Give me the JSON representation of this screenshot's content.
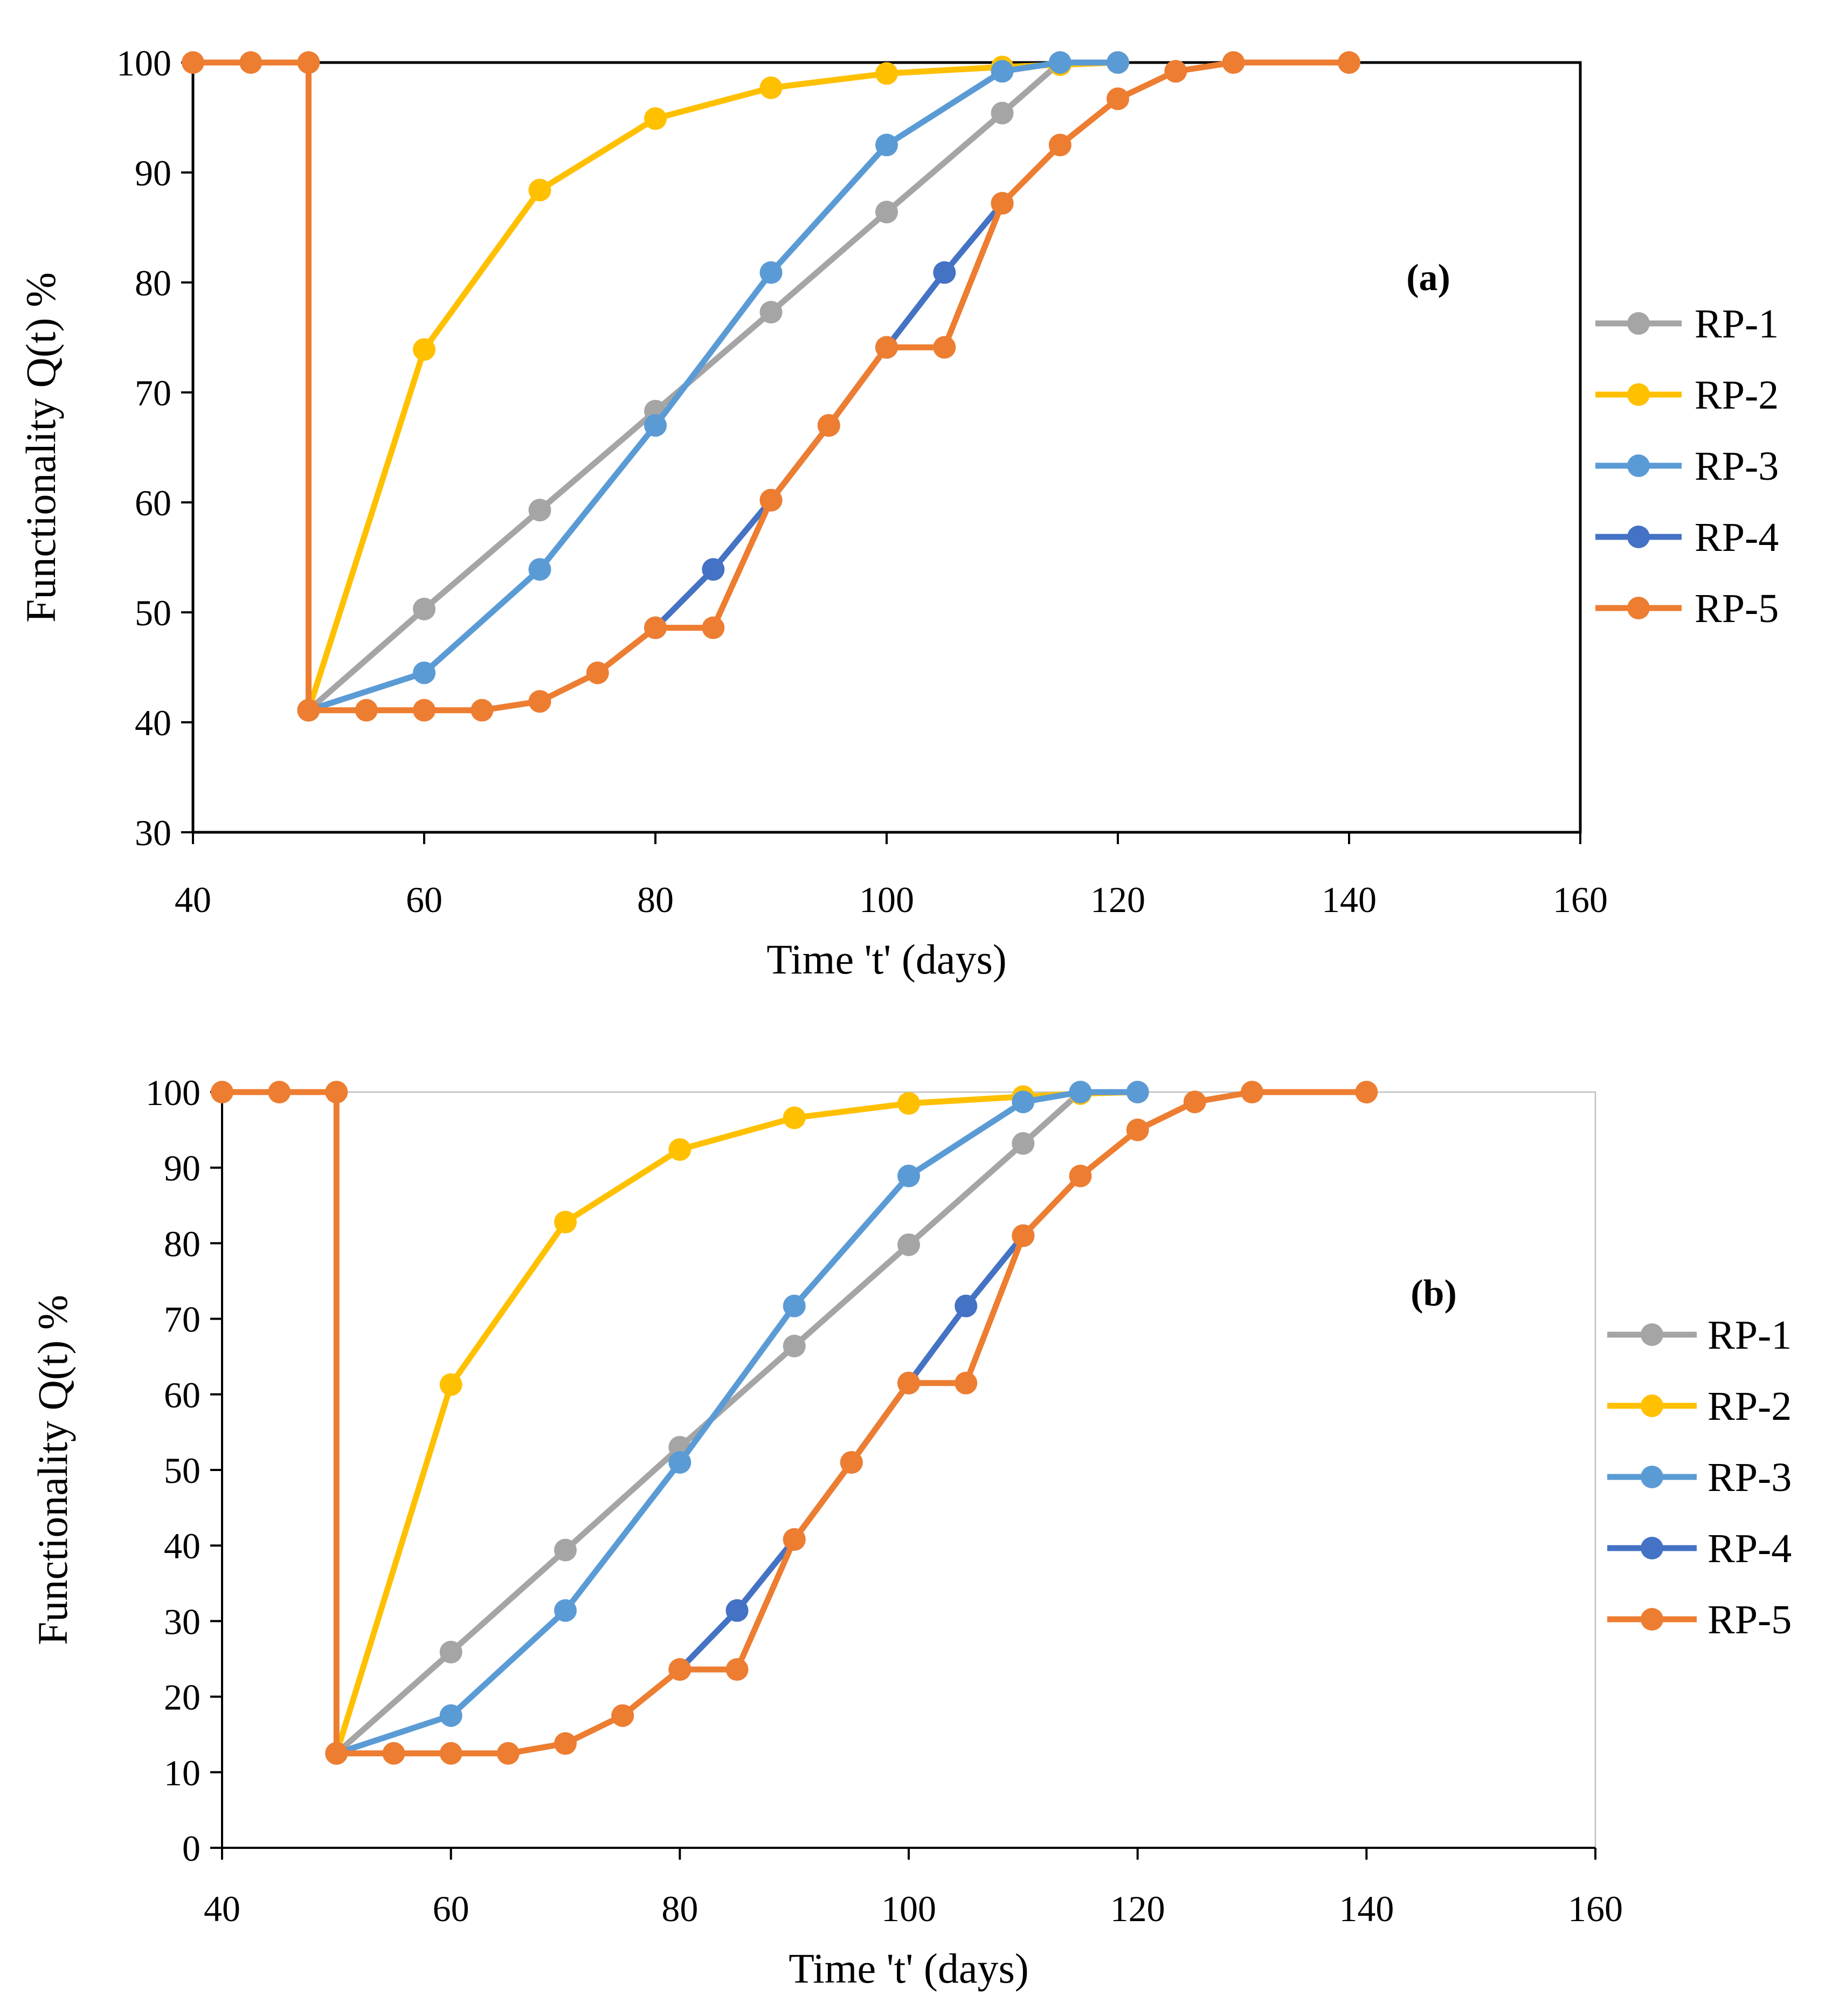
{
  "chart_data": [
    {
      "type": "line",
      "panel": "(a)",
      "xlabel": "Time 't' (days)",
      "ylabel": "Functionality Q(t) %",
      "xlim": [
        40,
        160
      ],
      "ylim": [
        30,
        100
      ],
      "xticks": [
        40,
        60,
        80,
        100,
        120,
        140,
        160
      ],
      "yticks": [
        30,
        40,
        50,
        60,
        70,
        80,
        90,
        100
      ],
      "legend_position": "right",
      "series": [
        {
          "name": "RP-1",
          "color": "#A5A5A5",
          "points": [
            [
              50,
              41.1
            ],
            [
              60,
              50.3
            ],
            [
              70,
              59.3
            ],
            [
              80,
              68.3
            ],
            [
              90,
              77.3
            ],
            [
              100,
              86.4
            ],
            [
              110,
              95.4
            ],
            [
              115,
              100
            ]
          ]
        },
        {
          "name": "RP-2",
          "color": "#FFC000",
          "points": [
            [
              50,
              41.1
            ],
            [
              60,
              73.9
            ],
            [
              70,
              88.4
            ],
            [
              80,
              94.9
            ],
            [
              90,
              97.7
            ],
            [
              100,
              99.0
            ],
            [
              110,
              99.6
            ],
            [
              115,
              99.8
            ],
            [
              120,
              100
            ]
          ]
        },
        {
          "name": "RP-3",
          "color": "#5B9BD5",
          "points": [
            [
              50,
              41.1
            ],
            [
              60,
              44.5
            ],
            [
              70,
              53.9
            ],
            [
              80,
              67.0
            ],
            [
              90,
              80.9
            ],
            [
              100,
              92.5
            ],
            [
              110,
              99.2
            ],
            [
              115,
              100
            ],
            [
              120,
              100
            ]
          ]
        },
        {
          "name": "RP-4",
          "color": "#4472C4",
          "points": [
            [
              80,
              48.6
            ],
            [
              85,
              53.9
            ],
            [
              90,
              60.2
            ],
            [
              95,
              67.0
            ],
            [
              100,
              74.1
            ],
            [
              105,
              80.9
            ],
            [
              110,
              87.2
            ]
          ]
        },
        {
          "name": "RP-5",
          "color": "#ED7D31",
          "points": [
            [
              40,
              100
            ],
            [
              45,
              100
            ],
            [
              50,
              100
            ],
            [
              50,
              41.1
            ],
            [
              55,
              41.1
            ],
            [
              60,
              41.1
            ],
            [
              65,
              41.1
            ],
            [
              70,
              41.9
            ],
            [
              75,
              44.5
            ],
            [
              80,
              48.6
            ],
            [
              85,
              48.6
            ],
            [
              90,
              60.2
            ],
            [
              95,
              67.0
            ],
            [
              100,
              74.1
            ],
            [
              105,
              74.1
            ],
            [
              110,
              87.2
            ],
            [
              115,
              92.5
            ],
            [
              120,
              96.7
            ],
            [
              125,
              99.2
            ],
            [
              130,
              100
            ],
            [
              140,
              100
            ]
          ]
        }
      ]
    },
    {
      "type": "line",
      "panel": "(b)",
      "xlabel": "Time 't' (days)",
      "ylabel": "Functionality Q(t) %",
      "xlim": [
        40,
        160
      ],
      "ylim": [
        0,
        100
      ],
      "xticks": [
        40,
        60,
        80,
        100,
        120,
        140,
        160
      ],
      "yticks": [
        0,
        10,
        20,
        30,
        40,
        50,
        60,
        70,
        80,
        90,
        100
      ],
      "legend_position": "right",
      "series": [
        {
          "name": "RP-1",
          "color": "#A5A5A5",
          "points": [
            [
              50,
              12.5
            ],
            [
              60,
              25.9
            ],
            [
              70,
              39.4
            ],
            [
              80,
              53.0
            ],
            [
              90,
              66.4
            ],
            [
              100,
              79.8
            ],
            [
              110,
              93.2
            ],
            [
              115,
              100
            ]
          ]
        },
        {
          "name": "RP-2",
          "color": "#FFC000",
          "points": [
            [
              50,
              12.5
            ],
            [
              60,
              61.3
            ],
            [
              70,
              82.8
            ],
            [
              80,
              92.4
            ],
            [
              90,
              96.6
            ],
            [
              100,
              98.5
            ],
            [
              110,
              99.4
            ],
            [
              115,
              99.8
            ],
            [
              120,
              100
            ]
          ]
        },
        {
          "name": "RP-3",
          "color": "#5B9BD5",
          "points": [
            [
              50,
              12.5
            ],
            [
              60,
              17.5
            ],
            [
              70,
              31.4
            ],
            [
              80,
              51.0
            ],
            [
              90,
              71.7
            ],
            [
              100,
              88.9
            ],
            [
              110,
              98.7
            ],
            [
              115,
              100
            ],
            [
              120,
              100
            ]
          ]
        },
        {
          "name": "RP-4",
          "color": "#4472C4",
          "points": [
            [
              80,
              23.6
            ],
            [
              85,
              31.4
            ],
            [
              90,
              40.8
            ],
            [
              95,
              51.0
            ],
            [
              100,
              61.5
            ],
            [
              105,
              71.7
            ],
            [
              110,
              81.0
            ]
          ]
        },
        {
          "name": "RP-5",
          "color": "#ED7D31",
          "points": [
            [
              40,
              100
            ],
            [
              45,
              100
            ],
            [
              50,
              100
            ],
            [
              50,
              12.5
            ],
            [
              55,
              12.5
            ],
            [
              60,
              12.5
            ],
            [
              65,
              12.5
            ],
            [
              70,
              13.8
            ],
            [
              75,
              17.5
            ],
            [
              80,
              23.6
            ],
            [
              85,
              23.6
            ],
            [
              90,
              40.8
            ],
            [
              95,
              51.0
            ],
            [
              100,
              61.5
            ],
            [
              105,
              61.5
            ],
            [
              110,
              81.0
            ],
            [
              115,
              88.9
            ],
            [
              120,
              95.0
            ],
            [
              125,
              98.7
            ],
            [
              130,
              100
            ],
            [
              140,
              100
            ]
          ]
        }
      ]
    }
  ]
}
